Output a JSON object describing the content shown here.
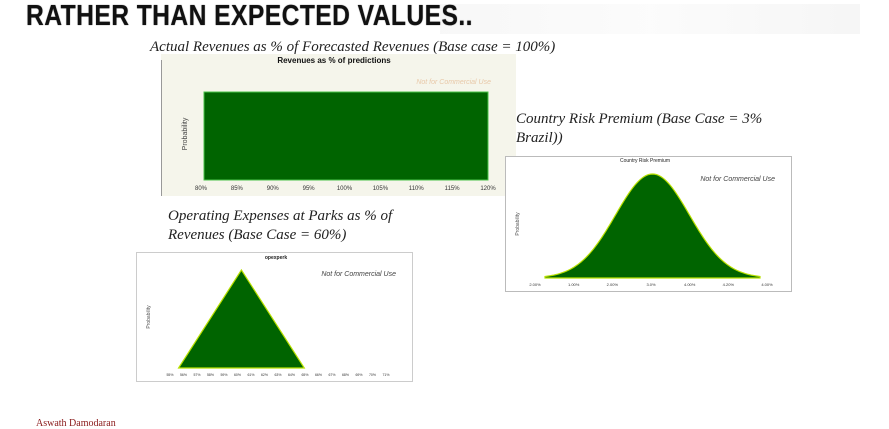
{
  "slide": {
    "title": "RATHER THAN EXPECTED VALUES..",
    "footer": "Aswath Damodaran"
  },
  "captions": {
    "revenue": "Actual Revenues as % of Forecasted Revenues (Base case = 100%)",
    "country_risk": "Country Risk Premium (Base Case = 3% Brazil))",
    "opex": "Operating Expenses at Parks as % of Revenues (Base Case = 60%)"
  },
  "chart_data": [
    {
      "id": "revenue",
      "type": "area",
      "distribution": "uniform",
      "title": "Revenues as % of predictions",
      "ylabel": "Probability",
      "watermark": "Not for Commercial Use",
      "tick_labels": [
        "80%",
        "85%",
        "90%",
        "95%",
        "100%",
        "105%",
        "110%",
        "115%",
        "120%"
      ],
      "x": [
        80,
        120
      ],
      "y": [
        1,
        1
      ],
      "xlim": [
        80,
        120
      ],
      "colors": {
        "fill": "#006400",
        "edge": "#4ac24a",
        "background": "#f5f5eb"
      }
    },
    {
      "id": "country_risk",
      "type": "area",
      "distribution": "normal",
      "title": "Country Risk Premium",
      "ylabel": "Probability",
      "watermark": "Not for Commercial Use",
      "tick_labels": [
        "2.00%",
        "1.00%",
        "2.00%",
        "3.0%",
        "4.00%",
        "4.20%",
        "4.00%"
      ],
      "mean": 3.0,
      "xlim": [
        1.4,
        4.6
      ],
      "colors": {
        "fill": "#006400",
        "edge": "#b8e000",
        "background": "#ffffff"
      }
    },
    {
      "id": "opex",
      "type": "area",
      "distribution": "triangular",
      "title": "opexperk",
      "ylabel": "Probability",
      "watermark": "Not for Commercial Use",
      "tick_labels": [
        "55%",
        "56%",
        "57%",
        "58%",
        "59%",
        "60%",
        "61%",
        "62%",
        "63%",
        "64%",
        "65%",
        "66%",
        "67%",
        "68%",
        "69%",
        "70%",
        "71%"
      ],
      "x": [
        55,
        60,
        65
      ],
      "y": [
        0,
        1,
        0
      ],
      "xlim": [
        54,
        71.5
      ],
      "colors": {
        "fill": "#006400",
        "edge": "#b8e000",
        "background": "#ffffff"
      }
    }
  ]
}
